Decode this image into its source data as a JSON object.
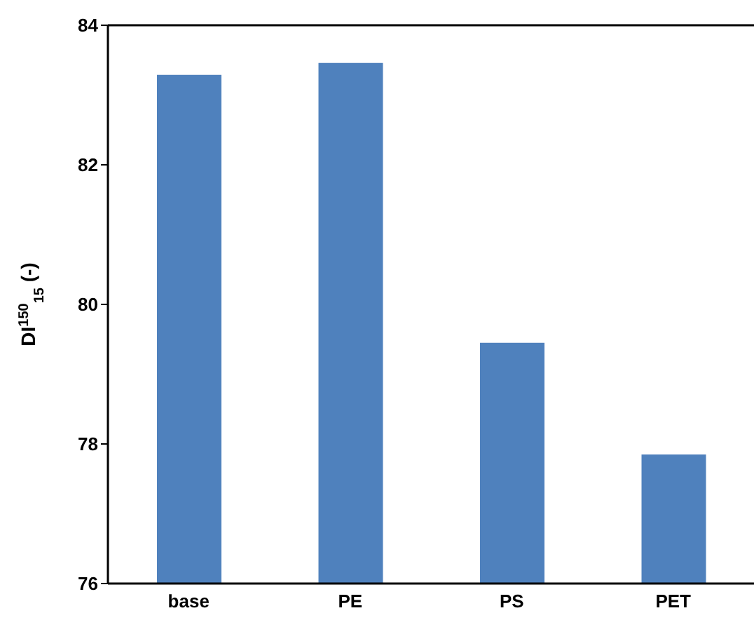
{
  "chart_data": {
    "type": "bar",
    "ylabel": "DI$^{150}$$_{15}$ (-)",
    "categories": [
      "base",
      "PE",
      "PS",
      "PET"
    ],
    "values": [
      83.29,
      83.46,
      79.45,
      77.85
    ],
    "color": "#4f81bd",
    "ylim": [
      76,
      84
    ],
    "yticks": [
      76,
      78,
      80,
      82,
      84
    ],
    "grid": false
  }
}
